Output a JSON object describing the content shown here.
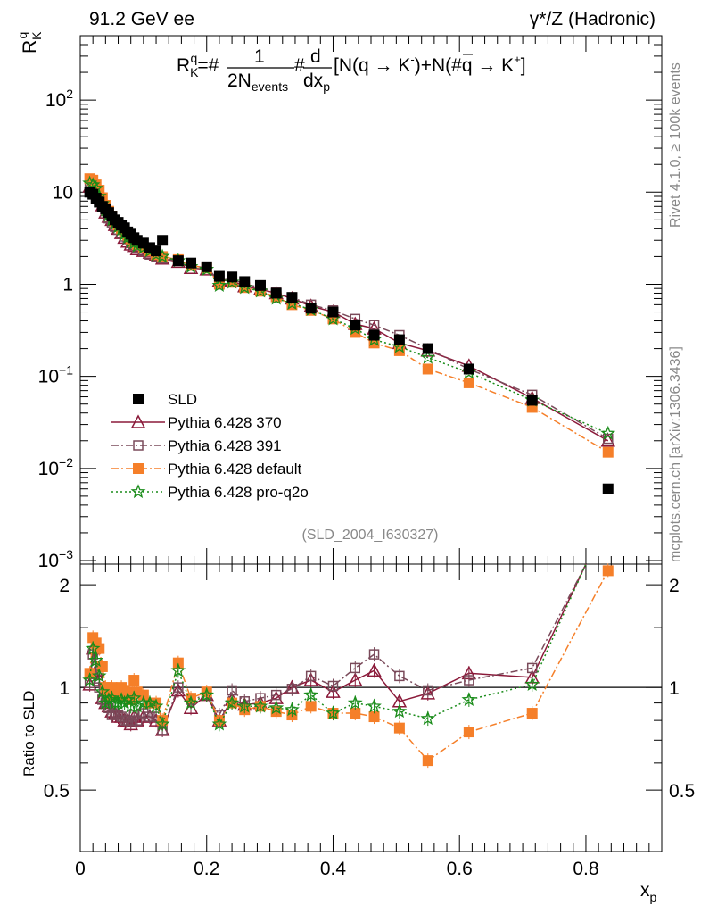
{
  "header": {
    "left": "91.2 GeV ee",
    "right": "γ*/Z (Hadronic)"
  },
  "side": {
    "rivet": "Rivet 4.1.0, ≥ 100k events",
    "mcplots": "mcplots.cern.ch [arXiv:1306.3436]"
  },
  "chart_data": [
    {
      "type": "scatter",
      "title": "R_K^q = 1/(2N_events) d/dx_p [N(q → K⁻)+N(q̄ → K⁺)]",
      "formula": {
        "R": "R",
        "Rsub": "K",
        "Rsup": "q",
        "eq": "=#",
        "num1": "1",
        "den1": "2N",
        "den1sub": "events",
        "mid": "#",
        "num2": "d",
        "den2": "dx",
        "den2sub": "p",
        "tail1": "[N(q → ",
        "K1": "K",
        "tail2": ")+N(#",
        "qbar": "q",
        "tail3": " → ",
        "K2": "K",
        "tail4": "]"
      },
      "ylabel": {
        "main": "R",
        "sub": "K",
        "sup": "q"
      },
      "xlabel": {
        "main": "x",
        "sub": "p"
      },
      "yscale": "log",
      "xlim": [
        0,
        0.92
      ],
      "ylim": [
        0.001,
        500
      ],
      "yticks": [
        {
          "base": "10",
          "exp": "−3",
          "value": 0.001
        },
        {
          "base": "10",
          "exp": "−2",
          "value": 0.01
        },
        {
          "base": "10",
          "exp": "−1",
          "value": 0.1
        },
        {
          "base": "1",
          "exp": "",
          "value": 1
        },
        {
          "base": "10",
          "exp": "",
          "value": 10
        },
        {
          "base": "10",
          "exp": "2",
          "value": 100
        }
      ],
      "watermark": "(SLD_2004_I630327)",
      "legend_position": "bottom-left",
      "series": [
        {
          "name": "SLD",
          "color": "#000000",
          "marker": "filled-square",
          "line": "none",
          "x": [
            0.015,
            0.02,
            0.025,
            0.03,
            0.035,
            0.04,
            0.045,
            0.05,
            0.055,
            0.06,
            0.065,
            0.07,
            0.075,
            0.08,
            0.085,
            0.09,
            0.1,
            0.11,
            0.12,
            0.13,
            0.155,
            0.175,
            0.2,
            0.22,
            0.24,
            0.26,
            0.285,
            0.31,
            0.335,
            0.365,
            0.4,
            0.435,
            0.465,
            0.505,
            0.55,
            0.615,
            0.715,
            0.835
          ],
          "y": [
            10.0,
            9.5,
            8.6,
            7.8,
            7.0,
            6.6,
            6.0,
            5.5,
            5.0,
            4.7,
            4.4,
            4.1,
            3.7,
            3.5,
            3.2,
            3.0,
            2.8,
            2.5,
            2.3,
            3.0,
            1.8,
            1.7,
            1.55,
            1.22,
            1.2,
            1.07,
            0.97,
            0.8,
            0.72,
            0.55,
            0.5,
            0.36,
            0.28,
            0.25,
            0.2,
            0.12,
            0.055,
            0.006
          ]
        },
        {
          "name": "Pythia 6.428 370",
          "color": "#8b1a3a",
          "marker": "open-triangle",
          "line": "solid",
          "x": [
            0.015,
            0.02,
            0.025,
            0.03,
            0.035,
            0.04,
            0.045,
            0.05,
            0.055,
            0.06,
            0.065,
            0.07,
            0.075,
            0.08,
            0.085,
            0.09,
            0.1,
            0.11,
            0.12,
            0.13,
            0.155,
            0.175,
            0.2,
            0.22,
            0.24,
            0.26,
            0.285,
            0.31,
            0.335,
            0.365,
            0.4,
            0.435,
            0.465,
            0.505,
            0.55,
            0.615,
            0.715,
            0.835
          ],
          "y": [
            11.5,
            10.8,
            10.0,
            8.6,
            7.2,
            6.0,
            5.4,
            5.0,
            4.4,
            4.0,
            3.6,
            3.2,
            2.9,
            2.7,
            2.6,
            2.4,
            2.3,
            2.2,
            2.1,
            1.9,
            1.75,
            1.5,
            1.45,
            1.1,
            1.1,
            0.95,
            0.88,
            0.8,
            0.7,
            0.58,
            0.5,
            0.37,
            0.33,
            0.23,
            0.19,
            0.13,
            0.058,
            0.02
          ]
        },
        {
          "name": "Pythia 6.428 391",
          "color": "#7a4a5a",
          "marker": "open-square",
          "line": "dash-dot",
          "x": [
            0.015,
            0.02,
            0.025,
            0.03,
            0.035,
            0.04,
            0.045,
            0.05,
            0.055,
            0.06,
            0.065,
            0.07,
            0.075,
            0.08,
            0.085,
            0.09,
            0.1,
            0.11,
            0.12,
            0.13,
            0.155,
            0.175,
            0.2,
            0.22,
            0.24,
            0.26,
            0.285,
            0.31,
            0.335,
            0.365,
            0.4,
            0.435,
            0.465,
            0.505,
            0.55,
            0.615,
            0.715,
            0.835
          ],
          "y": [
            11.8,
            11.0,
            10.2,
            8.5,
            7.3,
            6.2,
            5.2,
            4.7,
            4.2,
            3.9,
            3.6,
            3.3,
            3.0,
            2.8,
            2.7,
            2.5,
            2.3,
            2.1,
            2.0,
            1.9,
            1.8,
            1.6,
            1.5,
            1.1,
            1.15,
            1.0,
            0.93,
            0.82,
            0.72,
            0.6,
            0.52,
            0.42,
            0.36,
            0.28,
            0.2,
            0.12,
            0.063,
            0.021
          ]
        },
        {
          "name": "Pythia 6.428 default",
          "color": "#f57f29",
          "marker": "filled-square",
          "line": "dash-dot",
          "x": [
            0.015,
            0.02,
            0.025,
            0.03,
            0.035,
            0.04,
            0.045,
            0.05,
            0.055,
            0.06,
            0.065,
            0.07,
            0.075,
            0.08,
            0.085,
            0.09,
            0.1,
            0.11,
            0.12,
            0.13,
            0.155,
            0.175,
            0.2,
            0.22,
            0.24,
            0.26,
            0.285,
            0.31,
            0.335,
            0.365,
            0.4,
            0.435,
            0.465,
            0.505,
            0.55,
            0.615,
            0.715,
            0.835
          ],
          "y": [
            14.0,
            13.5,
            12.0,
            10.5,
            8.7,
            7.2,
            6.2,
            5.5,
            4.8,
            4.4,
            4.0,
            3.7,
            3.4,
            3.1,
            2.9,
            2.7,
            2.5,
            2.3,
            2.1,
            2.0,
            1.85,
            1.6,
            1.5,
            1.0,
            1.05,
            0.92,
            0.84,
            0.73,
            0.6,
            0.52,
            0.42,
            0.3,
            0.23,
            0.19,
            0.12,
            0.085,
            0.046,
            0.015
          ]
        },
        {
          "name": "Pythia 6.428 pro-q2o",
          "color": "#1a8c1a",
          "marker": "open-star",
          "line": "dotted",
          "x": [
            0.015,
            0.02,
            0.025,
            0.03,
            0.035,
            0.04,
            0.045,
            0.05,
            0.055,
            0.06,
            0.065,
            0.07,
            0.075,
            0.08,
            0.085,
            0.09,
            0.1,
            0.11,
            0.12,
            0.13,
            0.155,
            0.175,
            0.2,
            0.22,
            0.24,
            0.26,
            0.285,
            0.31,
            0.335,
            0.365,
            0.4,
            0.435,
            0.465,
            0.505,
            0.55,
            0.615,
            0.715,
            0.835
          ],
          "y": [
            12.5,
            12.0,
            11.0,
            9.0,
            7.5,
            6.4,
            5.6,
            5.0,
            4.5,
            4.2,
            3.9,
            3.5,
            3.2,
            2.9,
            2.8,
            2.6,
            2.5,
            2.3,
            2.1,
            2.0,
            1.8,
            1.55,
            1.45,
            0.97,
            1.05,
            0.92,
            0.84,
            0.7,
            0.62,
            0.53,
            0.42,
            0.33,
            0.25,
            0.21,
            0.16,
            0.11,
            0.055,
            0.024
          ]
        }
      ]
    },
    {
      "type": "scatter",
      "title": "Ratio to SLD",
      "ylabel": "Ratio to SLD",
      "xlabel": {
        "main": "x",
        "sub": "p"
      },
      "xlim": [
        0,
        0.92
      ],
      "ylim": [
        0.33,
        2.3
      ],
      "xticks": [
        "0",
        "0.2",
        "0.4",
        "0.6",
        "0.8"
      ],
      "xtick_values": [
        0,
        0.2,
        0.4,
        0.6,
        0.8
      ],
      "yticks": [
        "0.5",
        "1",
        "2"
      ],
      "ytick_values": [
        0.5,
        1,
        2
      ],
      "reference_line": 1,
      "series": [
        {
          "name": "Pythia 6.428 370",
          "color": "#8b1a3a",
          "x": [
            0.015,
            0.02,
            0.025,
            0.03,
            0.035,
            0.04,
            0.045,
            0.05,
            0.055,
            0.06,
            0.065,
            0.07,
            0.075,
            0.08,
            0.085,
            0.09,
            0.1,
            0.11,
            0.12,
            0.13,
            0.155,
            0.175,
            0.2,
            0.22,
            0.24,
            0.26,
            0.285,
            0.31,
            0.335,
            0.365,
            0.4,
            0.435,
            0.465,
            0.505,
            0.55,
            0.615,
            0.715,
            0.8
          ],
          "y": [
            1.02,
            1.3,
            1.12,
            1.05,
            0.93,
            0.9,
            0.88,
            0.85,
            0.84,
            0.82,
            0.82,
            0.8,
            0.8,
            0.78,
            0.82,
            0.8,
            0.82,
            0.82,
            0.8,
            0.75,
            0.98,
            0.87,
            0.95,
            0.8,
            0.92,
            0.89,
            0.9,
            0.93,
            1.0,
            1.05,
            0.97,
            1.05,
            1.12,
            0.91,
            0.96,
            1.1,
            1.07,
            2.3
          ]
        },
        {
          "name": "Pythia 6.428 391",
          "color": "#7a4a5a",
          "x": [
            0.015,
            0.02,
            0.025,
            0.03,
            0.035,
            0.04,
            0.045,
            0.05,
            0.055,
            0.06,
            0.065,
            0.07,
            0.075,
            0.08,
            0.085,
            0.09,
            0.1,
            0.11,
            0.12,
            0.13,
            0.155,
            0.175,
            0.2,
            0.22,
            0.24,
            0.26,
            0.285,
            0.31,
            0.335,
            0.365,
            0.4,
            0.435,
            0.465,
            0.505,
            0.55,
            0.615,
            0.715,
            0.8
          ],
          "y": [
            1.03,
            1.25,
            1.15,
            1.0,
            0.92,
            0.9,
            0.87,
            0.83,
            0.84,
            0.83,
            0.82,
            0.8,
            0.8,
            0.79,
            0.83,
            0.8,
            0.84,
            0.82,
            0.82,
            0.75,
            1.0,
            0.92,
            0.95,
            0.83,
            0.98,
            0.91,
            0.93,
            0.95,
            0.99,
            1.08,
            1.01,
            1.14,
            1.25,
            1.08,
            0.98,
            1.05,
            1.14,
            2.3
          ]
        },
        {
          "name": "Pythia 6.428 default",
          "color": "#f57f29",
          "x": [
            0.015,
            0.02,
            0.025,
            0.03,
            0.035,
            0.04,
            0.045,
            0.05,
            0.055,
            0.06,
            0.065,
            0.07,
            0.075,
            0.08,
            0.085,
            0.09,
            0.1,
            0.11,
            0.12,
            0.13,
            0.155,
            0.175,
            0.2,
            0.22,
            0.24,
            0.26,
            0.285,
            0.31,
            0.335,
            0.365,
            0.4,
            0.435,
            0.465,
            0.505,
            0.55,
            0.615,
            0.715,
            0.835
          ],
          "y": [
            1.1,
            1.4,
            1.35,
            1.3,
            1.15,
            1.0,
            0.95,
            1.0,
            0.97,
            0.95,
            1.0,
            0.98,
            0.97,
            0.92,
            1.05,
            0.97,
            0.95,
            0.9,
            0.9,
            0.8,
            1.18,
            0.93,
            0.97,
            0.8,
            0.9,
            0.86,
            0.88,
            0.85,
            0.83,
            0.88,
            0.84,
            0.84,
            0.82,
            0.76,
            0.61,
            0.74,
            0.84,
            2.2
          ]
        },
        {
          "name": "Pythia 6.428 pro-q2o",
          "color": "#1a8c1a",
          "x": [
            0.015,
            0.02,
            0.025,
            0.03,
            0.035,
            0.04,
            0.045,
            0.05,
            0.055,
            0.06,
            0.065,
            0.07,
            0.075,
            0.08,
            0.085,
            0.09,
            0.1,
            0.11,
            0.12,
            0.13,
            0.155,
            0.175,
            0.2,
            0.22,
            0.24,
            0.26,
            0.285,
            0.31,
            0.335,
            0.365,
            0.4,
            0.435,
            0.465,
            0.505,
            0.55,
            0.615,
            0.715,
            0.8
          ],
          "y": [
            1.05,
            1.3,
            1.2,
            1.08,
            0.97,
            0.9,
            0.92,
            0.93,
            0.9,
            0.9,
            0.92,
            0.9,
            0.92,
            0.88,
            0.93,
            0.88,
            0.9,
            0.9,
            0.88,
            0.78,
            1.12,
            0.9,
            0.95,
            0.78,
            0.9,
            0.88,
            0.88,
            0.87,
            0.86,
            0.95,
            0.84,
            0.9,
            0.88,
            0.85,
            0.81,
            0.92,
            1.02,
            2.3
          ]
        }
      ]
    }
  ]
}
